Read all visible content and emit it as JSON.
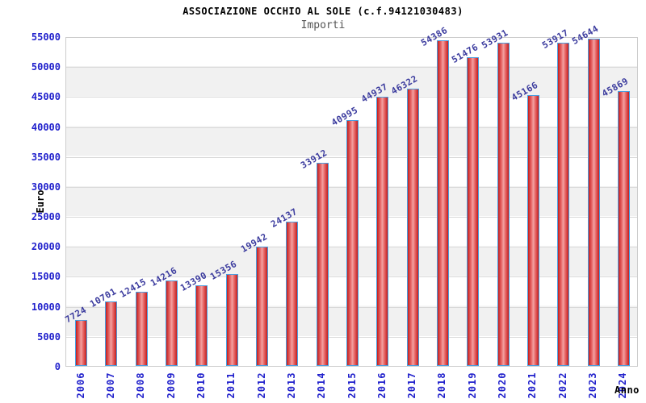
{
  "header": {
    "title": "ASSOCIAZIONE OCCHIO AL SOLE (c.f.94121030483)",
    "subtitle": "Importi"
  },
  "chart_data": {
    "type": "bar",
    "title": "ASSOCIAZIONE OCCHIO AL SOLE (c.f.94121030483)",
    "subtitle": "Importi",
    "xlabel": "Anno",
    "ylabel": "Euro",
    "categories": [
      "2006",
      "2007",
      "2008",
      "2009",
      "2010",
      "2011",
      "2012",
      "2013",
      "2014",
      "2015",
      "2016",
      "2017",
      "2018",
      "2019",
      "2020",
      "2021",
      "2022",
      "2023",
      "2024"
    ],
    "values": [
      7724,
      10701,
      12415,
      14216,
      13390,
      15356,
      19942,
      24137,
      33912,
      40995,
      44937,
      46322,
      54386,
      51476,
      53931,
      45166,
      53917,
      54644,
      45869
    ],
    "ylim": [
      0,
      55000
    ],
    "ytick_step": 5000,
    "yticks": [
      0,
      5000,
      10000,
      15000,
      20000,
      25000,
      30000,
      35000,
      40000,
      45000,
      50000,
      55000
    ],
    "grid": "horizontal-bands",
    "legend": "none",
    "bar_labels_rotation_deg": -30,
    "x_labels_rotation_deg": -90
  },
  "colors": {
    "title": "#000000",
    "subtitle": "#555555",
    "axis_tick_label": "#2121cc",
    "value_label": "#3b3b9e",
    "bar_border": "#4a9ee0",
    "bar_edge": "#c41e1e",
    "bar_mid": "#f2a2a2",
    "band": "#f1f1f1",
    "gridline": "#d9d9d9",
    "plot_border": "#cccccc",
    "background": "#ffffff"
  }
}
